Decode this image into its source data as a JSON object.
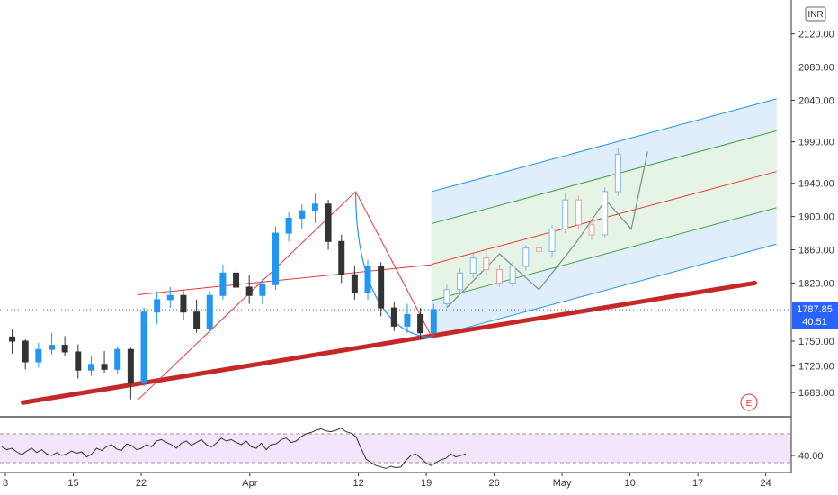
{
  "chart_data": {
    "type": "candlestick",
    "currency": "INR",
    "price_axis": {
      "ticks": [
        1688,
        1720,
        1750,
        1787.85,
        1820,
        1860,
        1900,
        1940,
        1990,
        2040,
        2080,
        2120
      ],
      "tick_labels": [
        "1688.00",
        "1720.00",
        "1750.00",
        "",
        "1820.00",
        "1860.00",
        "1900.00",
        "1940.00",
        "1990.00",
        "2040.00",
        "2080.00",
        "2120.00"
      ],
      "range": [
        1660,
        2150
      ]
    },
    "last_price": {
      "value": 1787.85,
      "label": "1787.85",
      "countdown": "40:51",
      "color": "#2962ff"
    },
    "time_axis": {
      "labels": [
        "8",
        "15",
        "22",
        "Apr",
        "12",
        "19",
        "26",
        "May",
        "10",
        "17",
        "24"
      ],
      "label_bars": [
        0,
        5,
        10,
        18,
        26,
        31,
        36,
        41,
        46,
        51,
        56
      ],
      "total_bars": 57
    },
    "candles": [
      {
        "o": 1755,
        "h": 1765,
        "l": 1735,
        "c": 1750
      },
      {
        "o": 1750,
        "h": 1752,
        "l": 1716,
        "c": 1725
      },
      {
        "o": 1725,
        "h": 1748,
        "l": 1718,
        "c": 1740
      },
      {
        "o": 1740,
        "h": 1760,
        "l": 1734,
        "c": 1745
      },
      {
        "o": 1745,
        "h": 1756,
        "l": 1732,
        "c": 1737
      },
      {
        "o": 1737,
        "h": 1746,
        "l": 1705,
        "c": 1715
      },
      {
        "o": 1715,
        "h": 1733,
        "l": 1708,
        "c": 1722
      },
      {
        "o": 1722,
        "h": 1738,
        "l": 1712,
        "c": 1716
      },
      {
        "o": 1716,
        "h": 1744,
        "l": 1710,
        "c": 1740
      },
      {
        "o": 1740,
        "h": 1742,
        "l": 1680,
        "c": 1700
      },
      {
        "o": 1700,
        "h": 1790,
        "l": 1695,
        "c": 1785
      },
      {
        "o": 1785,
        "h": 1810,
        "l": 1770,
        "c": 1800
      },
      {
        "o": 1800,
        "h": 1815,
        "l": 1790,
        "c": 1805
      },
      {
        "o": 1805,
        "h": 1812,
        "l": 1775,
        "c": 1785
      },
      {
        "o": 1785,
        "h": 1800,
        "l": 1760,
        "c": 1765
      },
      {
        "o": 1765,
        "h": 1810,
        "l": 1760,
        "c": 1805
      },
      {
        "o": 1805,
        "h": 1842,
        "l": 1800,
        "c": 1832
      },
      {
        "o": 1832,
        "h": 1838,
        "l": 1805,
        "c": 1815
      },
      {
        "o": 1815,
        "h": 1830,
        "l": 1795,
        "c": 1805
      },
      {
        "o": 1805,
        "h": 1825,
        "l": 1795,
        "c": 1818
      },
      {
        "o": 1818,
        "h": 1888,
        "l": 1812,
        "c": 1880
      },
      {
        "o": 1880,
        "h": 1905,
        "l": 1870,
        "c": 1898
      },
      {
        "o": 1898,
        "h": 1915,
        "l": 1885,
        "c": 1907
      },
      {
        "o": 1907,
        "h": 1928,
        "l": 1892,
        "c": 1915
      },
      {
        "o": 1915,
        "h": 1920,
        "l": 1860,
        "c": 1870
      },
      {
        "o": 1870,
        "h": 1878,
        "l": 1820,
        "c": 1830
      },
      {
        "o": 1830,
        "h": 1840,
        "l": 1800,
        "c": 1808
      },
      {
        "o": 1808,
        "h": 1848,
        "l": 1800,
        "c": 1840
      },
      {
        "o": 1840,
        "h": 1845,
        "l": 1780,
        "c": 1790
      },
      {
        "o": 1790,
        "h": 1798,
        "l": 1762,
        "c": 1768
      },
      {
        "o": 1768,
        "h": 1795,
        "l": 1760,
        "c": 1782
      },
      {
        "o": 1782,
        "h": 1790,
        "l": 1752,
        "c": 1760
      },
      {
        "o": 1760,
        "h": 1795,
        "l": 1756,
        "c": 1788
      },
      {
        "o": 1795,
        "h": 1818,
        "l": 1790,
        "c": 1812,
        "p": 1
      },
      {
        "o": 1812,
        "h": 1838,
        "l": 1806,
        "c": 1832,
        "p": 1
      },
      {
        "o": 1832,
        "h": 1856,
        "l": 1826,
        "c": 1850,
        "p": 1
      },
      {
        "o": 1850,
        "h": 1858,
        "l": 1830,
        "c": 1836,
        "p": 1
      },
      {
        "o": 1836,
        "h": 1842,
        "l": 1815,
        "c": 1820,
        "p": 1
      },
      {
        "o": 1820,
        "h": 1845,
        "l": 1815,
        "c": 1840,
        "p": 1
      },
      {
        "o": 1840,
        "h": 1866,
        "l": 1835,
        "c": 1862,
        "p": 1
      },
      {
        "o": 1862,
        "h": 1870,
        "l": 1850,
        "c": 1858,
        "p": 1
      },
      {
        "o": 1858,
        "h": 1890,
        "l": 1852,
        "c": 1885,
        "p": 1
      },
      {
        "o": 1885,
        "h": 1928,
        "l": 1880,
        "c": 1920,
        "p": 1
      },
      {
        "o": 1920,
        "h": 1925,
        "l": 1885,
        "c": 1890,
        "p": 1
      },
      {
        "o": 1890,
        "h": 1895,
        "l": 1872,
        "c": 1878,
        "p": 1
      },
      {
        "o": 1878,
        "h": 1935,
        "l": 1875,
        "c": 1930,
        "p": 1
      },
      {
        "o": 1930,
        "h": 1982,
        "l": 1925,
        "c": 1975,
        "p": 1
      }
    ],
    "overlays": {
      "pitchfork": {
        "median_color": "#e53935",
        "inner_color": "#43a047",
        "outer_color": "#2196f3",
        "inner_fill": "#e6f4e6",
        "outer_fill": "#ddebfb",
        "pivot": {
          "bar": 25.8,
          "price": 1930
        },
        "median_start": {
          "bar": 31.4,
          "price": 1755
        },
        "end_bar": 56.8,
        "slope_per_bar": 4.4,
        "outer_offset": 175,
        "inner_offset": 87.5
      },
      "trend_support": {
        "color": "#c62828",
        "from": {
          "bar": 1.3,
          "price": 1676
        },
        "to": {
          "bar": 55.2,
          "price": 1820
        }
      },
      "trend_resistance": {
        "color": "#e53935",
        "from": {
          "bar": 9.8,
          "price": 1806
        },
        "to": {
          "bar": 31.4,
          "price": 1842
        }
      },
      "rise_leg": {
        "color": "#e53935",
        "from": {
          "bar": 9.8,
          "price": 1680
        },
        "to": {
          "bar": 25.8,
          "price": 1930
        }
      },
      "arc": {
        "color": "#2196f3",
        "from": {
          "bar": 25.8,
          "price": 1930
        },
        "to": {
          "bar": 31.4,
          "price": 1755
        }
      },
      "projection": {
        "color": "#888888",
        "points": [
          {
            "bar": 32.5,
            "price": 1790
          },
          {
            "bar": 36.4,
            "price": 1855
          },
          {
            "bar": 39.3,
            "price": 1812
          },
          {
            "bar": 42.1,
            "price": 1870
          },
          {
            "bar": 44.2,
            "price": 1920
          },
          {
            "bar": 46.1,
            "price": 1885
          },
          {
            "bar": 47.3,
            "price": 1978
          }
        ]
      }
    },
    "rsi": {
      "tick_label": "40.00",
      "tick_value": 40,
      "range": [
        20,
        90
      ],
      "band": [
        30,
        70
      ],
      "color": "#333333",
      "band_fill": "#f3e5fb",
      "values": [
        52,
        48,
        50,
        45,
        41,
        46,
        50,
        44,
        48,
        42,
        40,
        44,
        40,
        42,
        46,
        43,
        45,
        38,
        42,
        50,
        47,
        52,
        55,
        49,
        47,
        56,
        54,
        48,
        50,
        55,
        52,
        60,
        62,
        58,
        55,
        50,
        57,
        60,
        54,
        58,
        62,
        55,
        52,
        57,
        64,
        60,
        62,
        58,
        55,
        60,
        52,
        50,
        57,
        48,
        55,
        56,
        62,
        64,
        58,
        60,
        66,
        70,
        72,
        75,
        77,
        74,
        73,
        75,
        78,
        73,
        71,
        66,
        50,
        35,
        30,
        26,
        24,
        22,
        25,
        23,
        24,
        33,
        40,
        42,
        36,
        30,
        26,
        30,
        34,
        36,
        42,
        38,
        40,
        42
      ]
    },
    "marker": {
      "label": "E",
      "color": "#e53935"
    },
    "colors": {
      "up": "#2196f3",
      "down": "#333333",
      "projected": "#e0a0a8"
    }
  }
}
